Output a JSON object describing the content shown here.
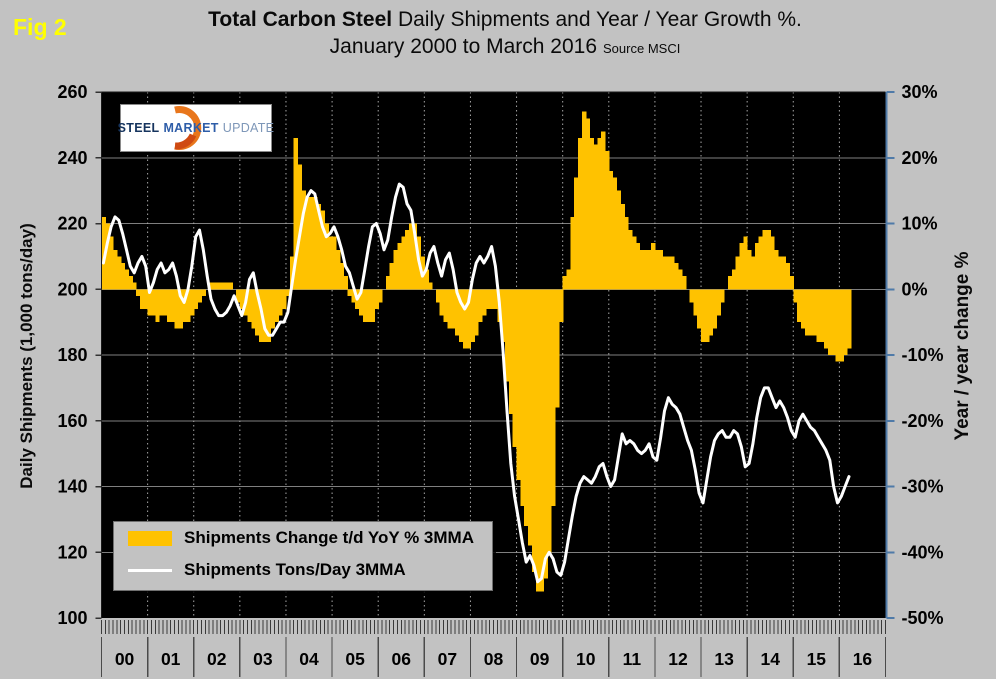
{
  "figure": {
    "label": "Fig 2"
  },
  "title": {
    "bold": "Total Carbon Steel",
    "rest": " Daily Shipments and Year / Year Growth %.",
    "line2": "January 2000 to March 2016",
    "source": "Source MSCI"
  },
  "logo": {
    "word1": "STEEL",
    "word2": "MARKET",
    "word3": "UPDATE"
  },
  "legend": {
    "bar_label": "Shipments Change t/d YoY % 3MMA",
    "line_label": "Shipments Tons/Day 3MMA"
  },
  "left_axis": {
    "title": "Daily Shipments (1,000 tons/day)",
    "ticks": [
      260,
      240,
      220,
      200,
      180,
      160,
      140,
      120,
      100
    ],
    "range": [
      100,
      260
    ]
  },
  "right_axis": {
    "title": "Year / year change %",
    "ticks": [
      "30%",
      "20%",
      "10%",
      "0%",
      "-10%",
      "-20%",
      "-30%",
      "-40%",
      "-50%"
    ],
    "range": [
      -50,
      30
    ]
  },
  "x_axis": {
    "years": [
      "00",
      "01",
      "02",
      "03",
      "04",
      "05",
      "06",
      "07",
      "08",
      "09",
      "10",
      "11",
      "12",
      "13",
      "14",
      "15",
      "16"
    ]
  },
  "colors": {
    "background": "#c2c2c2",
    "plot_bg": "#000000",
    "bar": "#ffc200",
    "line": "#ffffff",
    "fig_label": "#ffff00",
    "right_axis_line": "#4f7aa8",
    "grid_solid": "#7f7f7f",
    "grid_dotted": "#a6a6a6"
  },
  "chart_data": {
    "type": "combo",
    "start": "2000-01",
    "end": "2016-03",
    "grid": "on",
    "legend_position": "inside-lower-left",
    "left_axis_range": [
      100,
      260
    ],
    "right_axis_range": [
      -50,
      30
    ],
    "series": [
      {
        "name": "Shipments Change t/d YoY % 3MMA",
        "type": "bar",
        "axis": "right",
        "unit": "%",
        "values": [
          11,
          10,
          8,
          6,
          5,
          4,
          3,
          2,
          1,
          -1,
          -3,
          -3,
          -4,
          -4,
          -5,
          -4,
          -4,
          -5,
          -5,
          -6,
          -6,
          -5,
          -5,
          -4,
          -3,
          -2,
          -1,
          0,
          1,
          1,
          1,
          1,
          1,
          1,
          0,
          -2,
          -3,
          -4,
          -5,
          -6,
          -7,
          -8,
          -8,
          -8,
          -6,
          -5,
          -4,
          -3,
          -1,
          5,
          23,
          19,
          15,
          14,
          14,
          14,
          13,
          12,
          10,
          8,
          8,
          6,
          4,
          2,
          -1,
          -2,
          -3,
          -4,
          -5,
          -5,
          -5,
          -3,
          -2,
          0,
          2,
          4,
          6,
          7,
          8,
          9,
          10,
          10,
          8,
          5,
          3,
          1,
          0,
          -2,
          -4,
          -5,
          -6,
          -6,
          -7,
          -8,
          -9,
          -9,
          -8,
          -7,
          -5,
          -4,
          -3,
          -3,
          -3,
          -5,
          -8,
          -14,
          -19,
          -24,
          -29,
          -33,
          -36,
          -39,
          -43,
          -46,
          -46,
          -44,
          -40,
          -33,
          -18,
          -5,
          2,
          3,
          11,
          17,
          23,
          27,
          26,
          23,
          22,
          23,
          24,
          21,
          18,
          17,
          15,
          13,
          11,
          9,
          8,
          7,
          6,
          6,
          6,
          7,
          6,
          6,
          5,
          5,
          5,
          4,
          3,
          2,
          0,
          -2,
          -4,
          -6,
          -8,
          -8,
          -7,
          -6,
          -4,
          -2,
          0,
          2,
          3,
          5,
          7,
          8,
          6,
          5,
          7,
          8,
          9,
          9,
          8,
          6,
          5,
          5,
          4,
          2,
          -2,
          -5,
          -6,
          -7,
          -7,
          -7,
          -8,
          -8,
          -9,
          -10,
          -10,
          -11,
          -11,
          -10,
          -9
        ]
      },
      {
        "name": "Shipments Tons/Day 3MMA",
        "type": "line",
        "axis": "left",
        "unit": "1,000 tons/day",
        "values": [
          208,
          214,
          219,
          222,
          221,
          217,
          212,
          207,
          205,
          208,
          210,
          207,
          199,
          202,
          206,
          208,
          205,
          206,
          208,
          204,
          198,
          196,
          200,
          207,
          216,
          218,
          212,
          204,
          197,
          194,
          192,
          192,
          193,
          195,
          198,
          195,
          192,
          196,
          203,
          205,
          199,
          194,
          188,
          186,
          186,
          188,
          190,
          190,
          193,
          201,
          209,
          216,
          223,
          228,
          230,
          229,
          224,
          219,
          216,
          217,
          219,
          216,
          212,
          207,
          205,
          201,
          197,
          199,
          206,
          213,
          219,
          220,
          217,
          212,
          215,
          222,
          228,
          232,
          231,
          226,
          224,
          217,
          209,
          204,
          206,
          211,
          213,
          208,
          204,
          209,
          211,
          206,
          199,
          196,
          194,
          196,
          203,
          208,
          210,
          208,
          210,
          213,
          207,
          196,
          181,
          163,
          147,
          137,
          130,
          123,
          117,
          119,
          116,
          111,
          112,
          118,
          120,
          118,
          114,
          113,
          117,
          124,
          131,
          137,
          141,
          143,
          142,
          141,
          143,
          146,
          147,
          143,
          140,
          142,
          149,
          156,
          153,
          154,
          153,
          151,
          150,
          151,
          153,
          149,
          148,
          155,
          163,
          167,
          165,
          164,
          162,
          158,
          154,
          151,
          145,
          138,
          135,
          142,
          149,
          154,
          156,
          157,
          155,
          155,
          157,
          156,
          152,
          146,
          147,
          153,
          161,
          167,
          170,
          170,
          167,
          164,
          166,
          164,
          161,
          157,
          155,
          160,
          162,
          160,
          158,
          157,
          155,
          153,
          151,
          148,
          140,
          135,
          137,
          140,
          143
        ]
      }
    ]
  }
}
